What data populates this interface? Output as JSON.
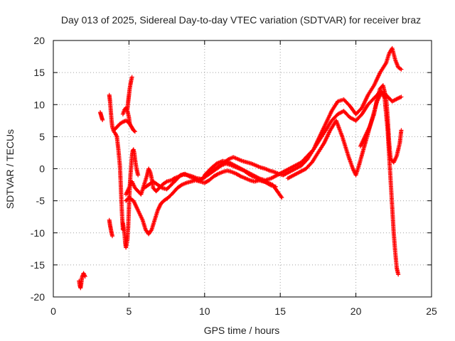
{
  "chart_data": {
    "type": "scatter",
    "title": "Day 013 of 2025, Sidereal Day-to-day VTEC variation (SDTVAR) for receiver braz",
    "xlabel": "GPS time / hours",
    "ylabel": "SDTVAR / TECUs",
    "xlim": [
      0,
      25
    ],
    "ylim": [
      -20,
      20
    ],
    "x_ticks": [
      "0",
      "5",
      "10",
      "15",
      "20",
      "25"
    ],
    "y_ticks": [
      "20",
      "15",
      "10",
      "5",
      "0",
      "-5",
      "-10",
      "-15",
      "-20"
    ],
    "grid": true,
    "marker": "plus",
    "color": "#ff0000",
    "series": [
      {
        "points": [
          [
            1.7,
            -17.5
          ],
          [
            1.75,
            -18.2
          ],
          [
            1.8,
            -18.6
          ],
          [
            1.85,
            -17.8
          ],
          [
            1.9,
            -16.9
          ],
          [
            2.0,
            -16.3
          ],
          [
            2.1,
            -16.8
          ]
        ]
      },
      {
        "points": [
          [
            3.1,
            8.8
          ],
          [
            3.15,
            8.4
          ],
          [
            3.2,
            8.0
          ],
          [
            3.25,
            7.6
          ]
        ]
      },
      {
        "points": [
          [
            3.7,
            -8.0
          ],
          [
            3.75,
            -8.8
          ],
          [
            3.8,
            -9.4
          ],
          [
            3.85,
            -10.0
          ],
          [
            3.9,
            -10.5
          ]
        ]
      },
      {
        "points": [
          [
            3.7,
            11.5
          ],
          [
            3.75,
            10.5
          ],
          [
            3.8,
            9.0
          ],
          [
            3.85,
            7.5
          ],
          [
            3.9,
            6.5
          ],
          [
            4.0,
            5.8
          ],
          [
            4.1,
            5.5
          ],
          [
            4.2,
            5.0
          ],
          [
            4.3,
            3.0
          ],
          [
            4.4,
            0.5
          ],
          [
            4.45,
            -2.0
          ],
          [
            4.5,
            -5.0
          ],
          [
            4.55,
            -7.5
          ],
          [
            4.6,
            -9.5
          ]
        ]
      },
      {
        "points": [
          [
            4.0,
            6.0
          ],
          [
            4.2,
            6.5
          ],
          [
            4.4,
            7.0
          ],
          [
            4.6,
            7.3
          ],
          [
            4.8,
            7.5
          ],
          [
            5.0,
            7.2
          ],
          [
            5.1,
            6.8
          ],
          [
            5.2,
            6.4
          ],
          [
            5.3,
            6.0
          ],
          [
            5.4,
            5.8
          ]
        ]
      },
      {
        "points": [
          [
            4.6,
            8.5
          ],
          [
            4.7,
            9.2
          ],
          [
            4.8,
            9.5
          ],
          [
            4.9,
            9.0
          ],
          [
            5.0,
            8.0
          ],
          [
            5.05,
            7.0
          ]
        ]
      },
      {
        "points": [
          [
            4.6,
            -8.5
          ],
          [
            4.7,
            -10.0
          ],
          [
            4.75,
            -11.5
          ],
          [
            4.8,
            -12.3
          ],
          [
            4.9,
            -11.0
          ],
          [
            4.95,
            -9.0
          ],
          [
            5.0,
            -6.0
          ],
          [
            5.05,
            -3.0
          ],
          [
            5.1,
            -1.0
          ],
          [
            5.15,
            0.5
          ],
          [
            5.2,
            2.0
          ],
          [
            5.25,
            2.8
          ],
          [
            5.3,
            3.0
          ],
          [
            5.35,
            2.5
          ],
          [
            5.4,
            1.5
          ],
          [
            5.5,
            0.0
          ],
          [
            5.6,
            -1.0
          ]
        ]
      },
      {
        "points": [
          [
            4.9,
            9.3
          ],
          [
            4.95,
            10.5
          ],
          [
            5.0,
            11.5
          ],
          [
            5.05,
            12.5
          ],
          [
            5.1,
            13.2
          ],
          [
            5.15,
            13.8
          ],
          [
            5.2,
            14.3
          ]
        ]
      },
      {
        "points": [
          [
            4.8,
            -4.0
          ],
          [
            5.0,
            -3.0
          ],
          [
            5.2,
            -2.0
          ],
          [
            5.4,
            -3.0
          ],
          [
            5.6,
            -3.5
          ],
          [
            5.8,
            -4.0
          ],
          [
            6.0,
            -2.5
          ],
          [
            6.2,
            -1.0
          ],
          [
            6.3,
            0.0
          ],
          [
            6.4,
            -0.5
          ],
          [
            6.5,
            -1.5
          ],
          [
            6.6,
            -3.0
          ],
          [
            6.8,
            -3.5
          ],
          [
            7.0,
            -3.0
          ],
          [
            7.2,
            -2.5
          ],
          [
            7.5,
            -2.0
          ],
          [
            7.8,
            -1.8
          ],
          [
            8.0,
            -1.5
          ]
        ]
      },
      {
        "points": [
          [
            4.8,
            -5.0
          ],
          [
            5.0,
            -4.5
          ],
          [
            5.3,
            -5.0
          ],
          [
            5.5,
            -6.0
          ],
          [
            5.7,
            -7.0
          ],
          [
            5.9,
            -8.0
          ],
          [
            6.1,
            -9.5
          ],
          [
            6.3,
            -10.2
          ],
          [
            6.5,
            -9.5
          ],
          [
            6.7,
            -8.0
          ],
          [
            6.9,
            -6.5
          ],
          [
            7.1,
            -5.5
          ],
          [
            7.3,
            -5.0
          ],
          [
            7.6,
            -4.5
          ],
          [
            7.9,
            -3.8
          ],
          [
            8.2,
            -3.0
          ],
          [
            8.5,
            -2.5
          ],
          [
            8.8,
            -2.2
          ],
          [
            9.1,
            -2.0
          ],
          [
            9.4,
            -1.8
          ],
          [
            9.7,
            -2.0
          ],
          [
            10.0,
            -2.2
          ],
          [
            10.3,
            -1.8
          ],
          [
            10.6,
            -1.2
          ],
          [
            10.9,
            -0.8
          ],
          [
            11.2,
            -0.5
          ],
          [
            11.5,
            -0.3
          ],
          [
            11.8,
            -0.5
          ],
          [
            12.1,
            -0.8
          ],
          [
            12.4,
            -1.2
          ],
          [
            12.7,
            -1.5
          ],
          [
            13.0,
            -1.8
          ],
          [
            13.3,
            -2.0
          ],
          [
            13.6,
            -1.8
          ],
          [
            13.9,
            -2.0
          ],
          [
            14.2,
            -2.2
          ],
          [
            14.5,
            -2.5
          ],
          [
            14.8,
            -3.5
          ],
          [
            15.1,
            -4.5
          ]
        ]
      },
      {
        "points": [
          [
            6.0,
            -3.0
          ],
          [
            6.3,
            -2.5
          ],
          [
            6.6,
            -2.0
          ],
          [
            6.9,
            -2.5
          ],
          [
            7.2,
            -3.0
          ],
          [
            7.5,
            -3.2
          ],
          [
            7.8,
            -2.5
          ],
          [
            8.1,
            -1.8
          ],
          [
            8.4,
            -1.0
          ],
          [
            8.7,
            -0.8
          ],
          [
            9.0,
            -1.2
          ],
          [
            9.3,
            -1.5
          ],
          [
            9.6,
            -1.8
          ],
          [
            9.9,
            -1.5
          ],
          [
            10.2,
            -1.0
          ],
          [
            10.5,
            -0.5
          ],
          [
            10.8,
            0.0
          ],
          [
            11.1,
            0.5
          ],
          [
            11.4,
            0.8
          ],
          [
            11.7,
            0.6
          ],
          [
            12.0,
            0.3
          ],
          [
            12.3,
            0.0
          ],
          [
            12.6,
            -0.3
          ],
          [
            12.9,
            -0.8
          ],
          [
            13.2,
            -1.2
          ],
          [
            13.5,
            -1.5
          ],
          [
            13.8,
            -1.8
          ],
          [
            14.1,
            -2.2
          ],
          [
            14.4,
            -2.6
          ],
          [
            14.7,
            -2.8
          ]
        ]
      },
      {
        "points": [
          [
            8.0,
            -1.5
          ],
          [
            8.3,
            -1.2
          ],
          [
            8.6,
            -0.9
          ],
          [
            8.9,
            -1.0
          ],
          [
            9.2,
            -1.2
          ],
          [
            9.5,
            -1.5
          ],
          [
            9.8,
            -1.6
          ],
          [
            10.1,
            -1.0
          ],
          [
            10.4,
            -0.5
          ],
          [
            10.7,
            0.0
          ],
          [
            11.0,
            0.5
          ],
          [
            11.3,
            1.0
          ],
          [
            11.6,
            1.5
          ],
          [
            11.9,
            1.8
          ],
          [
            12.2,
            1.5
          ],
          [
            12.5,
            1.2
          ],
          [
            12.8,
            1.0
          ],
          [
            13.1,
            0.8
          ],
          [
            13.4,
            0.5
          ],
          [
            13.7,
            0.2
          ],
          [
            14.0,
            0.0
          ],
          [
            14.3,
            -0.3
          ],
          [
            14.6,
            -0.5
          ],
          [
            14.9,
            -0.8
          ],
          [
            15.2,
            -1.0
          ]
        ]
      },
      {
        "points": [
          [
            10.0,
            -1.0
          ],
          [
            10.4,
            0.0
          ],
          [
            10.8,
            0.8
          ],
          [
            11.2,
            1.2
          ],
          [
            11.6,
            1.0
          ],
          [
            12.0,
            0.5
          ],
          [
            12.4,
            0.0
          ],
          [
            12.8,
            -0.5
          ],
          [
            13.2,
            -1.0
          ],
          [
            13.6,
            -1.5
          ],
          [
            14.0,
            -1.8
          ],
          [
            14.4,
            -1.5
          ],
          [
            14.8,
            -1.0
          ],
          [
            15.2,
            -0.5
          ],
          [
            15.6,
            0.0
          ],
          [
            16.0,
            0.5
          ],
          [
            16.4,
            1.0
          ],
          [
            16.8,
            2.0
          ],
          [
            17.2,
            3.0
          ],
          [
            17.6,
            4.5
          ],
          [
            18.0,
            6.0
          ],
          [
            18.4,
            7.5
          ],
          [
            18.8,
            8.5
          ],
          [
            19.2,
            9.0
          ],
          [
            19.6,
            8.0
          ],
          [
            20.0,
            7.5
          ],
          [
            20.4,
            8.5
          ],
          [
            20.8,
            10.0
          ],
          [
            21.2,
            11.0
          ],
          [
            21.6,
            12.0
          ],
          [
            22.0,
            11.5
          ],
          [
            22.4,
            10.5
          ],
          [
            22.8,
            11.0
          ],
          [
            23.0,
            11.2
          ]
        ]
      },
      {
        "points": [
          [
            15.2,
            -1.0
          ],
          [
            15.6,
            -0.5
          ],
          [
            16.0,
            0.0
          ],
          [
            16.4,
            0.5
          ],
          [
            16.8,
            1.5
          ],
          [
            17.2,
            3.0
          ],
          [
            17.6,
            5.0
          ],
          [
            18.0,
            7.0
          ],
          [
            18.4,
            9.0
          ],
          [
            18.8,
            10.5
          ],
          [
            19.2,
            10.8
          ],
          [
            19.6,
            9.8
          ],
          [
            20.0,
            8.5
          ],
          [
            20.4,
            9.5
          ],
          [
            20.8,
            11.5
          ],
          [
            21.2,
            13.0
          ],
          [
            21.6,
            15.0
          ],
          [
            22.0,
            16.5
          ],
          [
            22.2,
            18.0
          ],
          [
            22.4,
            18.8
          ],
          [
            22.6,
            17.0
          ],
          [
            22.8,
            15.8
          ],
          [
            23.0,
            15.5
          ]
        ]
      },
      {
        "points": [
          [
            15.5,
            -1.5
          ],
          [
            15.9,
            -1.0
          ],
          [
            16.3,
            -0.5
          ],
          [
            16.7,
            0.0
          ],
          [
            17.1,
            1.0
          ],
          [
            17.5,
            2.5
          ],
          [
            17.9,
            4.0
          ],
          [
            18.3,
            6.0
          ],
          [
            18.7,
            7.5
          ],
          [
            19.1,
            5.0
          ],
          [
            19.5,
            2.0
          ],
          [
            19.8,
            0.0
          ],
          [
            20.0,
            -1.0
          ],
          [
            20.2,
            0.5
          ],
          [
            20.5,
            3.0
          ],
          [
            20.8,
            5.5
          ],
          [
            21.1,
            8.0
          ],
          [
            21.4,
            10.5
          ],
          [
            21.7,
            12.0
          ],
          [
            21.9,
            11.0
          ],
          [
            22.1,
            6.0
          ],
          [
            22.2,
            2.0
          ],
          [
            22.3,
            -2.0
          ],
          [
            22.4,
            -6.0
          ],
          [
            22.5,
            -10.0
          ],
          [
            22.6,
            -13.0
          ],
          [
            22.7,
            -15.5
          ],
          [
            22.8,
            -16.5
          ]
        ]
      },
      {
        "points": [
          [
            20.3,
            3.5
          ],
          [
            20.6,
            5.0
          ],
          [
            20.9,
            6.5
          ],
          [
            21.2,
            8.5
          ],
          [
            21.4,
            11.0
          ],
          [
            21.6,
            12.5
          ],
          [
            21.8,
            13.0
          ],
          [
            22.0,
            11.0
          ],
          [
            22.1,
            8.0
          ],
          [
            22.2,
            4.0
          ],
          [
            22.3,
            1.5
          ],
          [
            22.5,
            1.0
          ],
          [
            22.7,
            2.0
          ],
          [
            22.9,
            4.0
          ],
          [
            23.0,
            6.0
          ]
        ]
      }
    ]
  }
}
